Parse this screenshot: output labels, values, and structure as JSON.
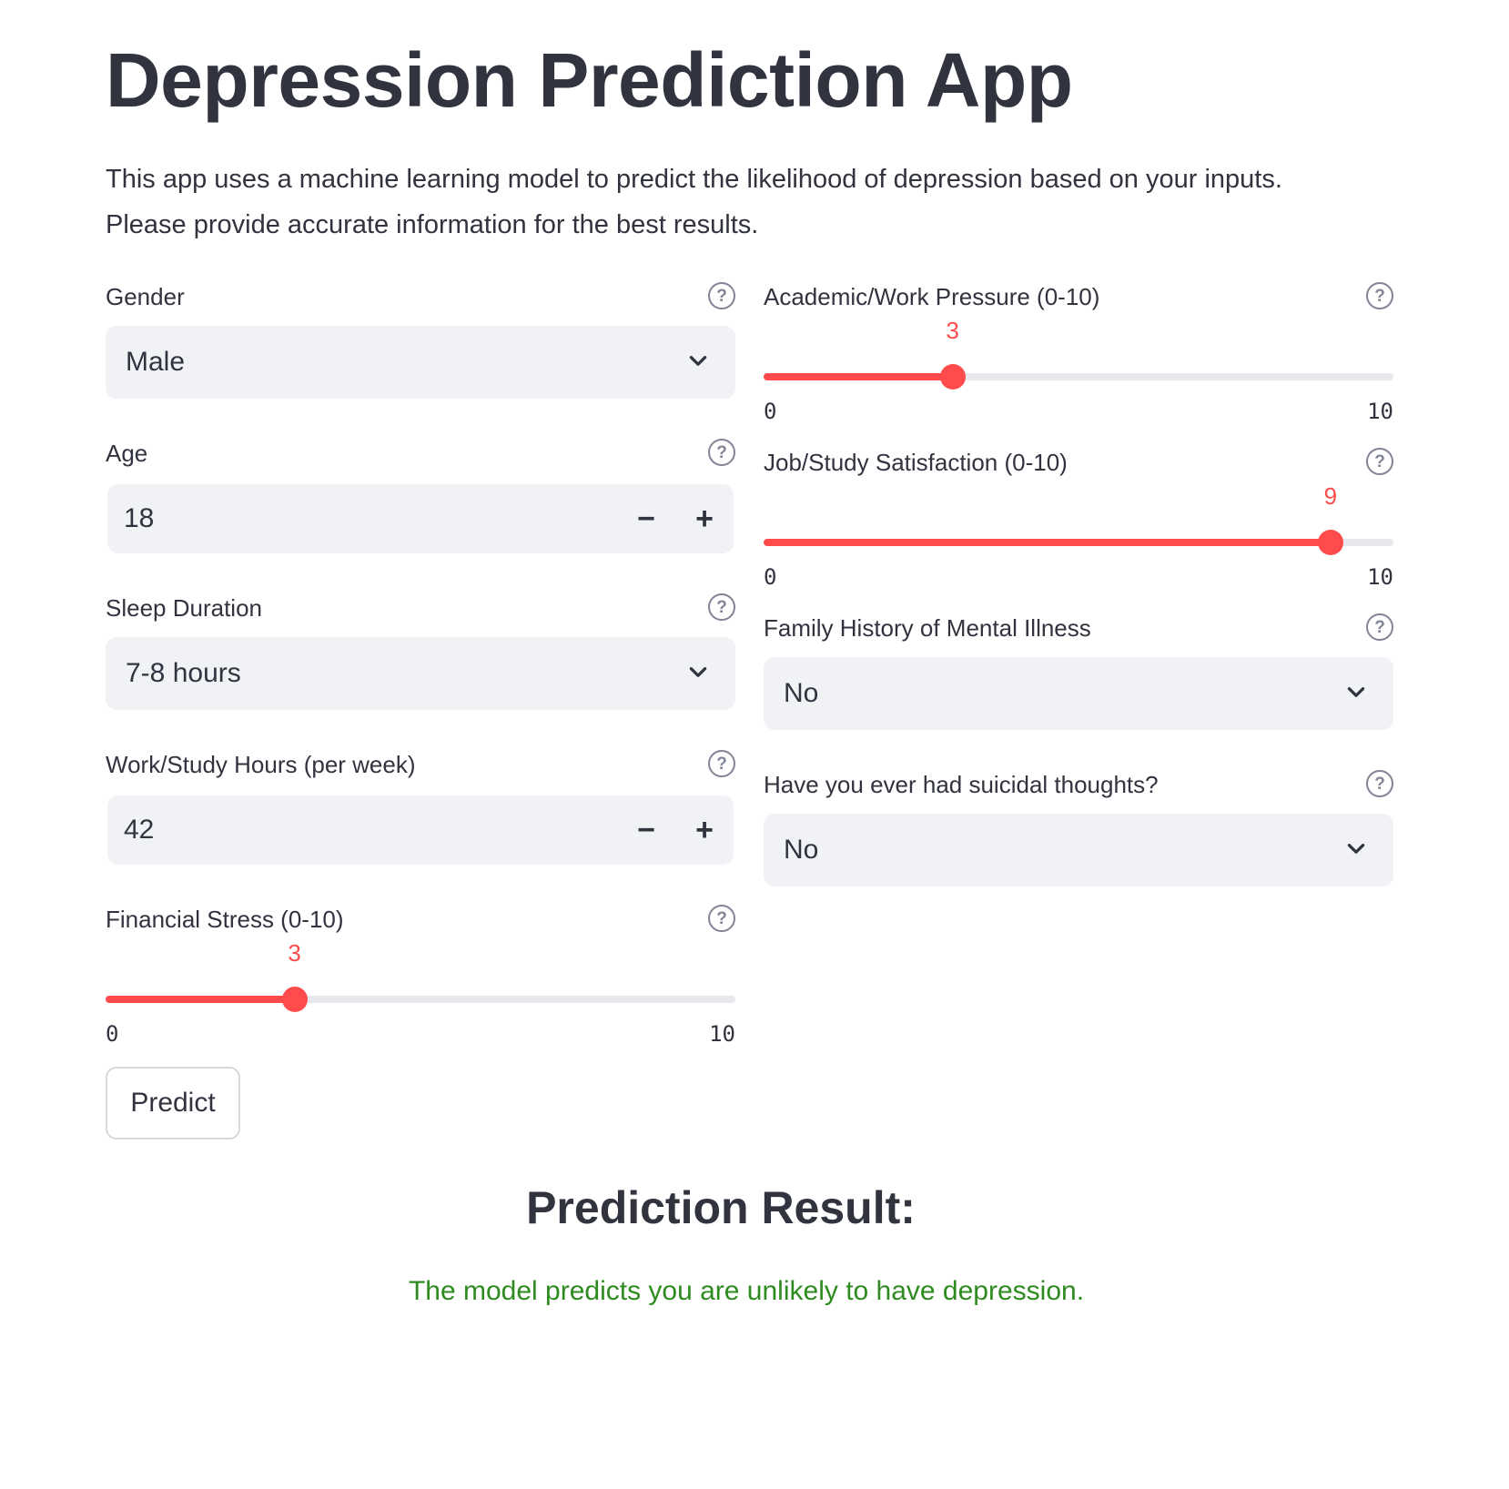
{
  "page": {
    "title": "Depression Prediction App",
    "intro_line1": "This app uses a machine learning model to predict the likelihood of depression based on your inputs.",
    "intro_line2": "Please provide accurate information for the best results."
  },
  "left": {
    "gender": {
      "label": "Gender",
      "value": "Male"
    },
    "age": {
      "label": "Age",
      "value": "18"
    },
    "sleep": {
      "label": "Sleep Duration",
      "value": "7-8 hours"
    },
    "work_hours": {
      "label": "Work/Study Hours (per week)",
      "value": "42"
    },
    "financial": {
      "label": "Financial Stress (0-10)",
      "value": 3,
      "min": 0,
      "max": 10,
      "value_text": "3",
      "min_text": "0",
      "max_text": "10"
    }
  },
  "right": {
    "academic": {
      "label": "Academic/Work Pressure (0-10)",
      "value": 3,
      "min": 0,
      "max": 10,
      "value_text": "3",
      "min_text": "0",
      "max_text": "10"
    },
    "satisfaction": {
      "label": "Job/Study Satisfaction (0-10)",
      "value": 9,
      "min": 0,
      "max": 10,
      "value_text": "9",
      "min_text": "0",
      "max_text": "10"
    },
    "family_history": {
      "label": "Family History of Mental Illness",
      "value": "No"
    },
    "suicidal": {
      "label": "Have you ever had suicidal thoughts?",
      "value": "No"
    }
  },
  "icons": {
    "help": "help-circle-icon",
    "chevron": "chevron-down-icon",
    "minus": "minus-icon",
    "plus": "plus-icon"
  },
  "help_glyph": "?",
  "stepper": {
    "minus": "−",
    "plus": "+"
  },
  "predict_label": "Predict",
  "result": {
    "title": "Prediction Result:",
    "message": "The model predicts you are unlikely to have depression."
  },
  "colors": {
    "accent": "#ff4b4b",
    "success": "#2e8b1f",
    "input_bg": "#f0f2f6",
    "text": "#31333f"
  }
}
